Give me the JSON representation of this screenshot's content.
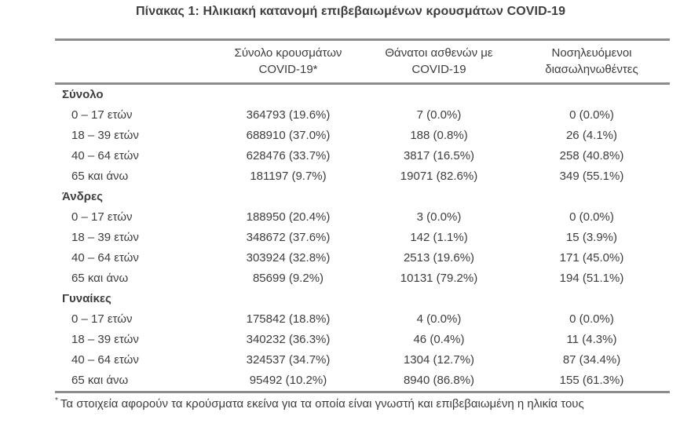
{
  "title": "Πίνακας 1: Ηλικιακή κατανομή επιβεβαιωμένων κρουσμάτων COVID-19",
  "colors": {
    "text": "#3d3d3d",
    "rule": "#8c8c8c",
    "background": "#ffffff"
  },
  "table": {
    "columns": {
      "cases": "Σύνολο κρουσμάτων COVID-19*",
      "deaths": "Θάνατοι ασθενών με COVID-19",
      "intubated": "Νοσηλευόμενοι διασωληνωθέντες"
    },
    "sections": [
      {
        "label": "Σύνολο",
        "rows": [
          {
            "label": "0 – 17 ετών",
            "cases": "364793 (19.6%)",
            "deaths": "7 (0.0%)",
            "intubated": "0 (0.0%)"
          },
          {
            "label": "18 – 39 ετών",
            "cases": "688910 (37.0%)",
            "deaths": "188 (0.8%)",
            "intubated": "26 (4.1%)"
          },
          {
            "label": "40 – 64 ετών",
            "cases": "628476 (33.7%)",
            "deaths": "3817 (16.5%)",
            "intubated": "258 (40.8%)"
          },
          {
            "label": "65 και άνω",
            "cases": "181197 (9.7%)",
            "deaths": "19071 (82.6%)",
            "intubated": "349 (55.1%)"
          }
        ]
      },
      {
        "label": "Άνδρες",
        "rows": [
          {
            "label": "0 – 17 ετών",
            "cases": "188950 (20.4%)",
            "deaths": "3 (0.0%)",
            "intubated": "0 (0.0%)"
          },
          {
            "label": "18 – 39 ετών",
            "cases": "348672 (37.6%)",
            "deaths": "142 (1.1%)",
            "intubated": "15 (3.9%)"
          },
          {
            "label": "40 – 64 ετών",
            "cases": "303924 (32.8%)",
            "deaths": "2513 (19.6%)",
            "intubated": "171 (45.0%)"
          },
          {
            "label": "65 και άνω",
            "cases": "85699 (9.2%)",
            "deaths": "10131 (79.2%)",
            "intubated": "194 (51.1%)"
          }
        ]
      },
      {
        "label": "Γυναίκες",
        "rows": [
          {
            "label": "0 – 17 ετών",
            "cases": "175842 (18.8%)",
            "deaths": "4 (0.0%)",
            "intubated": "0 (0.0%)"
          },
          {
            "label": "18 – 39 ετών",
            "cases": "340232 (36.3%)",
            "deaths": "46 (0.4%)",
            "intubated": "11 (4.3%)"
          },
          {
            "label": "40 – 64 ετών",
            "cases": "324537 (34.7%)",
            "deaths": "1304 (12.7%)",
            "intubated": "87 (34.4%)"
          },
          {
            "label": "65 και άνω",
            "cases": "95492 (10.2%)",
            "deaths": "8940 (86.8%)",
            "intubated": "155 (61.3%)"
          }
        ]
      }
    ]
  },
  "footnote": {
    "marker": "*",
    "text": "Τα στοιχεία αφορούν τα κρούσματα εκείνα για τα οποία είναι γνωστή και επιβεβαιωμένη η ηλικία τους"
  }
}
